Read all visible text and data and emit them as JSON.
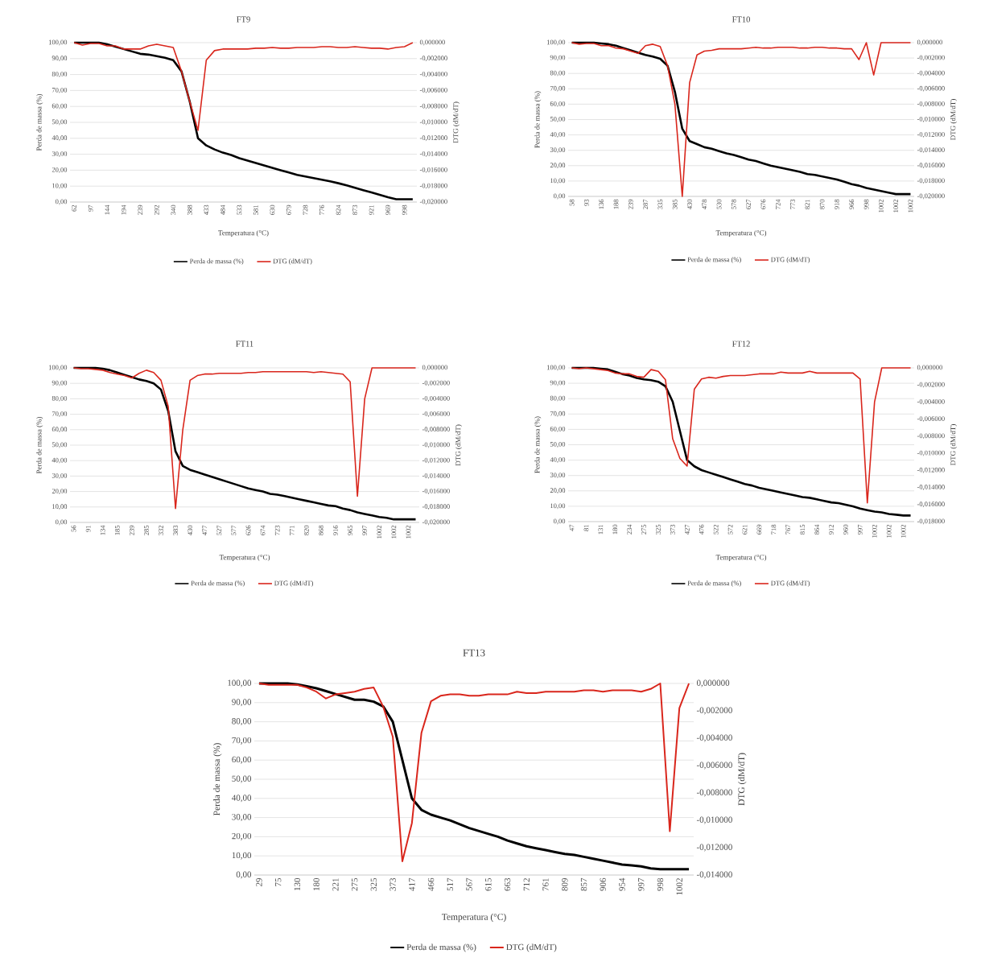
{
  "chart_data": [
    {
      "type": "line",
      "title": "FT9",
      "xlabel": "Temperatura (°C)",
      "ylabel": "Perda de massa (%)",
      "y2label": "DTG (dM/dT)",
      "grid": "y",
      "legend": "bottom",
      "categories": [
        "62",
        null,
        "97",
        null,
        "144",
        null,
        "194",
        null,
        "239",
        null,
        "292",
        null,
        "340",
        null,
        "388",
        null,
        "433",
        null,
        "484",
        null,
        "533",
        null,
        "581",
        null,
        "630",
        null,
        "679",
        null,
        "728",
        null,
        "776",
        null,
        "824",
        null,
        "873",
        null,
        "921",
        null,
        "969",
        null,
        "998",
        null
      ],
      "series": [
        {
          "name": "Perda de massa (%)",
          "color": "#000000",
          "values": [
            100,
            100,
            100,
            100,
            99,
            97.5,
            96,
            94.5,
            93,
            92.5,
            91.5,
            90.5,
            89,
            82,
            63,
            40,
            35.5,
            33,
            31,
            29.5,
            27.5,
            26,
            24.5,
            23,
            21.5,
            20,
            18.5,
            17,
            16,
            15,
            14,
            13,
            11.8,
            10.5,
            9,
            7.5,
            6,
            4.5,
            3,
            1.8,
            1.8,
            1.8
          ]
        },
        {
          "name": "DTG (dM/dT)",
          "color": "#d9261c",
          "axis": "y2",
          "values": [
            0,
            -0.0003,
            -0.0001,
            -0.0001,
            -0.0004,
            -0.0004,
            -0.0008,
            -0.0008,
            -0.0008,
            -0.0004,
            -0.0002,
            -0.0004,
            -0.0006,
            -0.0036,
            -0.0074,
            -0.011,
            -0.0022,
            -0.001,
            -0.0008,
            -0.0008,
            -0.0008,
            -0.0008,
            -0.0007,
            -0.0007,
            -0.0006,
            -0.0007,
            -0.0007,
            -0.0006,
            -0.0006,
            -0.0006,
            -0.0005,
            -0.0005,
            -0.0006,
            -0.0006,
            -0.0005,
            -0.0006,
            -0.0007,
            -0.0007,
            -0.0008,
            -0.0006,
            -0.0005,
            0
          ]
        }
      ],
      "ylim": [
        0,
        100
      ],
      "yticks": [
        {
          "value": 0,
          "label": "0,00"
        },
        {
          "value": 10,
          "label": "10,00"
        },
        {
          "value": 20,
          "label": "20,00"
        },
        {
          "value": 30,
          "label": "30,00"
        },
        {
          "value": 40,
          "label": "40,00"
        },
        {
          "value": 50,
          "label": "50,00"
        },
        {
          "value": 60,
          "label": "60,00"
        },
        {
          "value": 70,
          "label": "70,00"
        },
        {
          "value": 80,
          "label": "80,00"
        },
        {
          "value": 90,
          "label": "90,00"
        },
        {
          "value": 100,
          "label": "100,00"
        }
      ],
      "y2lim": [
        -0.02,
        0
      ],
      "y2ticks": [
        {
          "value": -0.02,
          "label": "-0,020000"
        },
        {
          "value": -0.018,
          "label": "-0,018000"
        },
        {
          "value": -0.016,
          "label": "-0,016000"
        },
        {
          "value": -0.014,
          "label": "-0,014000"
        },
        {
          "value": -0.012,
          "label": "-0,012000"
        },
        {
          "value": -0.01,
          "label": "-0,010000"
        },
        {
          "value": -0.008,
          "label": "-0,008000"
        },
        {
          "value": -0.006,
          "label": "-0,006000"
        },
        {
          "value": -0.004,
          "label": "-0,004000"
        },
        {
          "value": -0.002,
          "label": "-0,002000"
        },
        {
          "value": 0,
          "label": "0,000000"
        }
      ]
    },
    {
      "type": "line",
      "title": "FT10",
      "xlabel": "Temperatura (°C)",
      "ylabel": "Perda de massa (%)",
      "y2label": "DTG (dM/dT)",
      "grid": "y",
      "legend": "bottom",
      "categories": [
        "58",
        null,
        "93",
        null,
        "136",
        null,
        "188",
        null,
        "239",
        null,
        "287",
        null,
        "335",
        null,
        "385",
        null,
        "430",
        null,
        "478",
        null,
        "530",
        null,
        "578",
        null,
        "627",
        null,
        "676",
        null,
        "724",
        null,
        "773",
        null,
        "821",
        null,
        "870",
        null,
        "918",
        null,
        "966",
        null,
        "998",
        null,
        "1002",
        null,
        "1002",
        null,
        "1002"
      ],
      "series": [
        {
          "name": "Perda de massa (%)",
          "color": "#000000",
          "values": [
            100,
            100,
            100,
            100,
            99.5,
            99,
            98,
            96.5,
            95,
            93.5,
            92,
            91,
            89.5,
            85,
            68,
            44,
            36,
            34,
            32,
            31,
            29.5,
            28,
            27,
            25.5,
            24,
            23,
            21.5,
            20,
            19,
            18,
            17,
            16,
            14.5,
            14,
            13,
            12,
            11,
            9.5,
            8,
            7,
            5.5,
            4.5,
            3.5,
            2.5,
            1.5,
            1.5,
            1.5
          ]
        },
        {
          "name": "DTG (dM/dT)",
          "color": "#d9261c",
          "axis": "y2",
          "values": [
            0,
            -0.0002,
            -0.0001,
            -0.0001,
            -0.0004,
            -0.0004,
            -0.0007,
            -0.0008,
            -0.0011,
            -0.0014,
            -0.0004,
            -0.0002,
            -0.0005,
            -0.003,
            -0.008,
            -0.02,
            -0.0052,
            -0.0016,
            -0.0011,
            -0.001,
            -0.0008,
            -0.0008,
            -0.0008,
            -0.0008,
            -0.0007,
            -0.0006,
            -0.0007,
            -0.0007,
            -0.0006,
            -0.0006,
            -0.0006,
            -0.0007,
            -0.0007,
            -0.0006,
            -0.0006,
            -0.0007,
            -0.0007,
            -0.0008,
            -0.0008,
            -0.0022,
            0,
            -0.0042,
            0,
            0,
            0,
            0,
            0
          ]
        }
      ],
      "ylim": [
        0,
        100
      ],
      "yticks": [
        {
          "value": 0,
          "label": "0,00"
        },
        {
          "value": 10,
          "label": "10,00"
        },
        {
          "value": 20,
          "label": "20,00"
        },
        {
          "value": 30,
          "label": "30,00"
        },
        {
          "value": 40,
          "label": "40,00"
        },
        {
          "value": 50,
          "label": "50,00"
        },
        {
          "value": 60,
          "label": "60,00"
        },
        {
          "value": 70,
          "label": "70,00"
        },
        {
          "value": 80,
          "label": "80,00"
        },
        {
          "value": 90,
          "label": "90,00"
        },
        {
          "value": 100,
          "label": "100,00"
        }
      ],
      "y2lim": [
        -0.02,
        0
      ],
      "y2ticks": [
        {
          "value": -0.02,
          "label": "-0,020000"
        },
        {
          "value": -0.018,
          "label": "-0,018000"
        },
        {
          "value": -0.016,
          "label": "-0,016000"
        },
        {
          "value": -0.014,
          "label": "-0,014000"
        },
        {
          "value": -0.012,
          "label": "-0,012000"
        },
        {
          "value": -0.01,
          "label": "-0,010000"
        },
        {
          "value": -0.008,
          "label": "-0,008000"
        },
        {
          "value": -0.006,
          "label": "-0,006000"
        },
        {
          "value": -0.004,
          "label": "-0,004000"
        },
        {
          "value": -0.002,
          "label": "-0,002000"
        },
        {
          "value": 0,
          "label": "0,000000"
        }
      ]
    },
    {
      "type": "line",
      "title": "FT11",
      "xlabel": "Temperatura (°C)",
      "ylabel": "Perda de massa (%)",
      "y2label": "DTG (dM/dT)",
      "grid": "y",
      "legend": "bottom",
      "categories": [
        "56",
        null,
        "91",
        null,
        "134",
        null,
        "185",
        null,
        "239",
        null,
        "285",
        null,
        "332",
        null,
        "383",
        null,
        "430",
        null,
        "477",
        null,
        "527",
        null,
        "577",
        null,
        "626",
        null,
        "674",
        null,
        "723",
        null,
        "771",
        null,
        "820",
        null,
        "868",
        null,
        "916",
        null,
        "965",
        null,
        "997",
        null,
        "1002",
        null,
        "1002",
        null,
        "1002",
        null
      ],
      "series": [
        {
          "name": "Perda de massa (%)",
          "color": "#000000",
          "values": [
            100,
            100,
            100,
            100,
            99.5,
            98.5,
            97,
            95.5,
            94,
            92.5,
            91.5,
            90,
            86,
            72,
            46,
            36.5,
            34,
            32.5,
            31,
            29.5,
            28,
            26.5,
            25,
            23.5,
            22,
            21,
            20,
            18.5,
            18,
            17,
            16,
            15,
            14,
            13,
            12,
            11,
            10.5,
            9,
            8,
            6.5,
            5.5,
            4.5,
            3.5,
            3,
            2,
            2,
            2,
            2
          ]
        },
        {
          "name": "DTG (dM/dT)",
          "color": "#d9261c",
          "axis": "y2",
          "values": [
            0,
            -0.0001,
            -0.0001,
            -0.0002,
            -0.0003,
            -0.0006,
            -0.0008,
            -0.001,
            -0.0013,
            -0.0007,
            -0.0003,
            -0.0006,
            -0.0016,
            -0.005,
            -0.0182,
            -0.008,
            -0.0016,
            -0.001,
            -0.0008,
            -0.0008,
            -0.0007,
            -0.0007,
            -0.0007,
            -0.0007,
            -0.0006,
            -0.0006,
            -0.0005,
            -0.0005,
            -0.0005,
            -0.0005,
            -0.0005,
            -0.0005,
            -0.0005,
            -0.0006,
            -0.0005,
            -0.0006,
            -0.0007,
            -0.0008,
            -0.0018,
            -0.0166,
            -0.004,
            0,
            0,
            0,
            0,
            0,
            0,
            0
          ]
        }
      ],
      "ylim": [
        0,
        100
      ],
      "yticks": [
        {
          "value": 0,
          "label": "0,00"
        },
        {
          "value": 10,
          "label": "10,00"
        },
        {
          "value": 20,
          "label": "20,00"
        },
        {
          "value": 30,
          "label": "30,00"
        },
        {
          "value": 40,
          "label": "40,00"
        },
        {
          "value": 50,
          "label": "50,00"
        },
        {
          "value": 60,
          "label": "60,00"
        },
        {
          "value": 70,
          "label": "70,00"
        },
        {
          "value": 80,
          "label": "80,00"
        },
        {
          "value": 90,
          "label": "90,00"
        },
        {
          "value": 100,
          "label": "100,00"
        }
      ],
      "y2lim": [
        -0.02,
        0
      ],
      "y2ticks": [
        {
          "value": -0.02,
          "label": "-0,020000"
        },
        {
          "value": -0.018,
          "label": "-0,018000"
        },
        {
          "value": -0.016,
          "label": "-0,016000"
        },
        {
          "value": -0.014,
          "label": "-0,014000"
        },
        {
          "value": -0.012,
          "label": "-0,012000"
        },
        {
          "value": -0.01,
          "label": "-0,010000"
        },
        {
          "value": -0.008,
          "label": "-0,008000"
        },
        {
          "value": -0.006,
          "label": "-0,006000"
        },
        {
          "value": -0.004,
          "label": "-0,004000"
        },
        {
          "value": -0.002,
          "label": "-0,002000"
        },
        {
          "value": 0,
          "label": "0,000000"
        }
      ]
    },
    {
      "type": "line",
      "title": "FT12",
      "xlabel": "Temperatura (°C)",
      "ylabel": "Perda de massa (%)",
      "y2label": "DTG (dM/dT)",
      "grid": "y",
      "legend": "bottom",
      "categories": [
        "47",
        null,
        "81",
        null,
        "131",
        null,
        "180",
        null,
        "234",
        null,
        "275",
        null,
        "325",
        null,
        "373",
        null,
        "427",
        null,
        "476",
        null,
        "522",
        null,
        "572",
        null,
        "621",
        null,
        "669",
        null,
        "718",
        null,
        "767",
        null,
        "815",
        null,
        "864",
        null,
        "912",
        null,
        "960",
        null,
        "997",
        null,
        "1002",
        null,
        "1002",
        null,
        "1002",
        null
      ],
      "series": [
        {
          "name": "Perda de massa (%)",
          "color": "#000000",
          "values": [
            100,
            100,
            100,
            100,
            99.5,
            99,
            97.5,
            96,
            95,
            93.5,
            92.5,
            92,
            91,
            88,
            78,
            59,
            40,
            36,
            33.5,
            32,
            30.5,
            29,
            27.5,
            26,
            24.5,
            23.5,
            22,
            21,
            20,
            19,
            18,
            17,
            16,
            15.5,
            14.5,
            13.5,
            12.5,
            12,
            11,
            10,
            8.5,
            7.5,
            6.5,
            6,
            5,
            4.5,
            4,
            4
          ]
        },
        {
          "name": "DTG (dM/dT)",
          "color": "#d9261c",
          "axis": "y2",
          "values": [
            0,
            -0.0001,
            0,
            -0.0001,
            -0.0002,
            -0.0003,
            -0.0006,
            -0.0007,
            -0.0007,
            -0.001,
            -0.0011,
            -0.0002,
            -0.0004,
            -0.0014,
            -0.0083,
            -0.0106,
            -0.0115,
            -0.0025,
            -0.0013,
            -0.0011,
            -0.0012,
            -0.001,
            -0.0009,
            -0.0009,
            -0.0009,
            -0.0008,
            -0.0007,
            -0.0007,
            -0.0007,
            -0.0005,
            -0.0006,
            -0.0006,
            -0.0006,
            -0.0004,
            -0.0006,
            -0.0006,
            -0.0006,
            -0.0006,
            -0.0006,
            -0.0006,
            -0.0013,
            -0.0158,
            -0.004,
            0,
            0,
            0,
            0,
            0
          ]
        }
      ],
      "ylim": [
        0,
        100
      ],
      "yticks": [
        {
          "value": 0,
          "label": "0,00"
        },
        {
          "value": 10,
          "label": "10,00"
        },
        {
          "value": 20,
          "label": "20,00"
        },
        {
          "value": 30,
          "label": "30,00"
        },
        {
          "value": 40,
          "label": "40,00"
        },
        {
          "value": 50,
          "label": "50,00"
        },
        {
          "value": 60,
          "label": "60,00"
        },
        {
          "value": 70,
          "label": "70,00"
        },
        {
          "value": 80,
          "label": "80,00"
        },
        {
          "value": 90,
          "label": "90,00"
        },
        {
          "value": 100,
          "label": "100,00"
        }
      ],
      "y2lim": [
        -0.018,
        0
      ],
      "y2ticks": [
        {
          "value": -0.018,
          "label": "-0,018000"
        },
        {
          "value": -0.016,
          "label": "-0,016000"
        },
        {
          "value": -0.014,
          "label": "-0,014000"
        },
        {
          "value": -0.012,
          "label": "-0,012000"
        },
        {
          "value": -0.01,
          "label": "-0,010000"
        },
        {
          "value": -0.008,
          "label": "-0,008000"
        },
        {
          "value": -0.006,
          "label": "-0,006000"
        },
        {
          "value": -0.004,
          "label": "-0,004000"
        },
        {
          "value": -0.002,
          "label": "-0,002000"
        },
        {
          "value": 0,
          "label": "0,000000"
        }
      ]
    },
    {
      "type": "line",
      "title": "FT13",
      "xlabel": "Temperatura (°C)",
      "ylabel": "Perda de massa (%)",
      "y2label": "DTG (dM/dT)",
      "grid": "y",
      "legend": "bottom",
      "categories": [
        "29",
        null,
        "75",
        null,
        "130",
        null,
        "180",
        null,
        "221",
        null,
        "275",
        null,
        "325",
        null,
        "373",
        null,
        "417",
        null,
        "466",
        null,
        "517",
        null,
        "567",
        null,
        "615",
        null,
        "663",
        null,
        "712",
        null,
        "761",
        null,
        "809",
        null,
        "857",
        null,
        "906",
        null,
        "954",
        null,
        "997",
        null,
        "998",
        null,
        "1002",
        null
      ],
      "series": [
        {
          "name": "Perda de massa (%)",
          "color": "#000000",
          "values": [
            100,
            100,
            100,
            100,
            99.5,
            98.5,
            97.5,
            96,
            94.5,
            93,
            91.5,
            91.5,
            90.5,
            88,
            80,
            60,
            40,
            34,
            31.5,
            30,
            28.5,
            26.5,
            24.5,
            23,
            21.5,
            20,
            18,
            16.5,
            15,
            14,
            13,
            12,
            11,
            10.5,
            9.5,
            8.5,
            7.5,
            6.5,
            5.5,
            5,
            4.5,
            3.5,
            3,
            3,
            3,
            3
          ]
        },
        {
          "name": "DTG (dM/dT)",
          "color": "#d9261c",
          "axis": "y2",
          "values": [
            0,
            -0.0001,
            -0.0001,
            -0.0001,
            -0.0001,
            -0.0003,
            -0.0006,
            -0.0011,
            -0.0008,
            -0.0007,
            -0.0006,
            -0.0004,
            -0.0003,
            -0.0017,
            -0.0039,
            -0.013,
            -0.0102,
            -0.0036,
            -0.0013,
            -0.0009,
            -0.0008,
            -0.0008,
            -0.0009,
            -0.0009,
            -0.0008,
            -0.0008,
            -0.0008,
            -0.0006,
            -0.0007,
            -0.0007,
            -0.0006,
            -0.0006,
            -0.0006,
            -0.0006,
            -0.0005,
            -0.0005,
            -0.0006,
            -0.0005,
            -0.0005,
            -0.0005,
            -0.0006,
            -0.0004,
            0,
            -0.0108,
            -0.0018,
            0
          ]
        }
      ],
      "ylim": [
        0,
        100
      ],
      "yticks": [
        {
          "value": 0,
          "label": "0,00"
        },
        {
          "value": 10,
          "label": "10,00"
        },
        {
          "value": 20,
          "label": "20,00"
        },
        {
          "value": 30,
          "label": "30,00"
        },
        {
          "value": 40,
          "label": "40,00"
        },
        {
          "value": 50,
          "label": "50,00"
        },
        {
          "value": 60,
          "label": "60,00"
        },
        {
          "value": 70,
          "label": "70,00"
        },
        {
          "value": 80,
          "label": "80,00"
        },
        {
          "value": 90,
          "label": "90,00"
        },
        {
          "value": 100,
          "label": "100,00"
        }
      ],
      "y2lim": [
        -0.014,
        0
      ],
      "y2ticks": [
        {
          "value": -0.014,
          "label": "-0,014000"
        },
        {
          "value": -0.012,
          "label": "-0,012000"
        },
        {
          "value": -0.01,
          "label": "-0,010000"
        },
        {
          "value": -0.008,
          "label": "-0,008000"
        },
        {
          "value": -0.006,
          "label": "-0,006000"
        },
        {
          "value": -0.004,
          "label": "-0,004000"
        },
        {
          "value": -0.002,
          "label": "-0,002000"
        },
        {
          "value": 0,
          "label": "0,000000"
        }
      ]
    }
  ]
}
